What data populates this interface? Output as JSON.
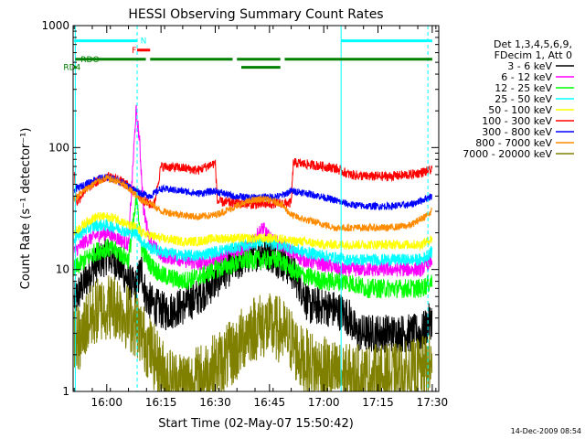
{
  "chart_data": {
    "type": "line",
    "title": "HESSI Observing Summary Count Rates",
    "xlabel": "Start Time (02-May-07 15:50:42)",
    "ylabel": "Count Rate (s⁻¹ detector⁻¹)",
    "x_unit": "hours (decimal, UT)",
    "xlim": [
      15.845,
      17.53
    ],
    "ylim": [
      1,
      1000
    ],
    "yscale": "log",
    "xticks": [
      {
        "x": 16.0,
        "label": "16:00"
      },
      {
        "x": 16.25,
        "label": "16:15"
      },
      {
        "x": 16.5,
        "label": "16:30"
      },
      {
        "x": 16.75,
        "label": "16:45"
      },
      {
        "x": 17.0,
        "label": "17:00"
      },
      {
        "x": 17.25,
        "label": "17:15"
      },
      {
        "x": 17.5,
        "label": "17:30"
      }
    ],
    "yticks": [
      {
        "y": 1,
        "label": "1"
      },
      {
        "y": 10,
        "label": "10"
      },
      {
        "y": 100,
        "label": "100"
      },
      {
        "y": 1000,
        "label": "1000"
      }
    ],
    "legend": {
      "header": [
        "Det 1,3,4,5,6,9,",
        "FDecim 1, Att 0"
      ],
      "placement": "right"
    },
    "series": [
      {
        "name": "3 - 6 keV",
        "color": "#000000",
        "points": [
          [
            15.85,
            5.5
          ],
          [
            15.9,
            8
          ],
          [
            15.95,
            11
          ],
          [
            16.0,
            13
          ],
          [
            16.05,
            11.5
          ],
          [
            16.1,
            8
          ],
          [
            16.13,
            7
          ],
          [
            16.16,
            10
          ],
          [
            16.18,
            6
          ],
          [
            16.22,
            5
          ],
          [
            16.27,
            4.5
          ],
          [
            16.35,
            5
          ],
          [
            16.42,
            6
          ],
          [
            16.5,
            8
          ],
          [
            16.55,
            10
          ],
          [
            16.62,
            12
          ],
          [
            16.68,
            14
          ],
          [
            16.74,
            14
          ],
          [
            16.8,
            12
          ],
          [
            16.85,
            10
          ],
          [
            16.9,
            7
          ],
          [
            16.93,
            5
          ],
          [
            17.0,
            5
          ],
          [
            17.08,
            4.5
          ],
          [
            17.12,
            4
          ],
          [
            17.15,
            3
          ],
          [
            17.25,
            3
          ],
          [
            17.35,
            3
          ],
          [
            17.45,
            3
          ],
          [
            17.5,
            4
          ]
        ]
      },
      {
        "name": "6 - 12 keV",
        "color": "#ff00ff",
        "points": [
          [
            15.85,
            14
          ],
          [
            15.9,
            17
          ],
          [
            15.95,
            19
          ],
          [
            16.0,
            20
          ],
          [
            16.05,
            18
          ],
          [
            16.1,
            16
          ],
          [
            16.135,
            200
          ],
          [
            16.15,
            120
          ],
          [
            16.17,
            30
          ],
          [
            16.2,
            17
          ],
          [
            16.25,
            13
          ],
          [
            16.35,
            12
          ],
          [
            16.42,
            11
          ],
          [
            16.5,
            12
          ],
          [
            16.58,
            14
          ],
          [
            16.65,
            15
          ],
          [
            16.72,
            22
          ],
          [
            16.75,
            18
          ],
          [
            16.8,
            16
          ],
          [
            16.85,
            14
          ],
          [
            16.9,
            12
          ],
          [
            17.0,
            11
          ],
          [
            17.08,
            10
          ],
          [
            17.15,
            10
          ],
          [
            17.25,
            10
          ],
          [
            17.35,
            10
          ],
          [
            17.45,
            10
          ],
          [
            17.5,
            12
          ]
        ]
      },
      {
        "name": "12 - 25 keV",
        "color": "#00ff00",
        "points": [
          [
            15.85,
            10
          ],
          [
            15.9,
            12
          ],
          [
            15.95,
            14
          ],
          [
            16.0,
            15
          ],
          [
            16.05,
            14
          ],
          [
            16.1,
            12
          ],
          [
            16.14,
            40
          ],
          [
            16.16,
            15
          ],
          [
            16.2,
            11
          ],
          [
            16.25,
            9
          ],
          [
            16.35,
            8
          ],
          [
            16.45,
            9
          ],
          [
            16.5,
            10
          ],
          [
            16.58,
            11
          ],
          [
            16.65,
            12
          ],
          [
            16.72,
            12
          ],
          [
            16.8,
            12
          ],
          [
            16.85,
            10
          ],
          [
            16.9,
            9
          ],
          [
            17.0,
            8
          ],
          [
            17.1,
            8
          ],
          [
            17.2,
            7
          ],
          [
            17.3,
            7
          ],
          [
            17.45,
            7
          ],
          [
            17.5,
            8
          ]
        ]
      },
      {
        "name": "25 - 50 keV",
        "color": "#00ffff",
        "points": [
          [
            15.85,
            18
          ],
          [
            15.9,
            21
          ],
          [
            15.95,
            23
          ],
          [
            16.0,
            23
          ],
          [
            16.05,
            22
          ],
          [
            16.1,
            20
          ],
          [
            16.14,
            20
          ],
          [
            16.16,
            17
          ],
          [
            16.2,
            15
          ],
          [
            16.25,
            14
          ],
          [
            16.35,
            13
          ],
          [
            16.42,
            13
          ],
          [
            16.5,
            14
          ],
          [
            16.58,
            15
          ],
          [
            16.65,
            16
          ],
          [
            16.72,
            17
          ],
          [
            16.8,
            16
          ],
          [
            16.85,
            15
          ],
          [
            16.9,
            14
          ],
          [
            17.0,
            13
          ],
          [
            17.1,
            12
          ],
          [
            17.2,
            12
          ],
          [
            17.3,
            12
          ],
          [
            17.45,
            12
          ],
          [
            17.5,
            14
          ]
        ]
      },
      {
        "name": "50 - 100 keV",
        "color": "#ffff00",
        "points": [
          [
            15.85,
            20
          ],
          [
            15.9,
            24
          ],
          [
            15.95,
            27
          ],
          [
            16.0,
            27
          ],
          [
            16.05,
            26
          ],
          [
            16.1,
            23
          ],
          [
            16.14,
            22
          ],
          [
            16.16,
            20
          ],
          [
            16.2,
            19
          ],
          [
            16.25,
            18
          ],
          [
            16.35,
            17
          ],
          [
            16.42,
            17
          ],
          [
            16.5,
            18
          ],
          [
            16.58,
            18
          ],
          [
            16.65,
            18
          ],
          [
            16.72,
            18
          ],
          [
            16.8,
            18
          ],
          [
            16.85,
            17
          ],
          [
            16.9,
            17
          ],
          [
            17.0,
            16
          ],
          [
            17.1,
            16
          ],
          [
            17.2,
            16
          ],
          [
            17.3,
            16
          ],
          [
            17.45,
            16
          ],
          [
            17.5,
            18
          ]
        ]
      },
      {
        "name": "100 - 300 keV",
        "color": "#ff0000",
        "points": [
          [
            15.85,
            65
          ],
          [
            15.86,
            35
          ],
          [
            15.9,
            45
          ],
          [
            15.95,
            52
          ],
          [
            16.0,
            58
          ],
          [
            16.05,
            55
          ],
          [
            16.1,
            48
          ],
          [
            16.14,
            42
          ],
          [
            16.16,
            38
          ],
          [
            16.2,
            34
          ],
          [
            16.22,
            35
          ],
          [
            16.25,
            70
          ],
          [
            16.35,
            68
          ],
          [
            16.42,
            65
          ],
          [
            16.5,
            75
          ],
          [
            16.51,
            36
          ],
          [
            16.6,
            35
          ],
          [
            16.7,
            34
          ],
          [
            16.8,
            35
          ],
          [
            16.85,
            35
          ],
          [
            16.86,
            75
          ],
          [
            16.95,
            72
          ],
          [
            17.05,
            68
          ],
          [
            17.12,
            60
          ],
          [
            17.2,
            58
          ],
          [
            17.3,
            58
          ],
          [
            17.4,
            60
          ],
          [
            17.5,
            65
          ]
        ]
      },
      {
        "name": "300 - 800 keV",
        "color": "#0000ff",
        "points": [
          [
            15.85,
            45
          ],
          [
            15.9,
            50
          ],
          [
            15.95,
            55
          ],
          [
            16.0,
            57
          ],
          [
            16.05,
            54
          ],
          [
            16.1,
            48
          ],
          [
            16.14,
            44
          ],
          [
            16.16,
            42
          ],
          [
            16.2,
            40
          ],
          [
            16.25,
            46
          ],
          [
            16.35,
            44
          ],
          [
            16.42,
            42
          ],
          [
            16.5,
            44
          ],
          [
            16.58,
            40
          ],
          [
            16.65,
            39
          ],
          [
            16.72,
            39
          ],
          [
            16.8,
            40
          ],
          [
            16.85,
            44
          ],
          [
            16.9,
            43
          ],
          [
            16.98,
            40
          ],
          [
            17.05,
            37
          ],
          [
            17.12,
            34
          ],
          [
            17.2,
            33
          ],
          [
            17.3,
            33
          ],
          [
            17.4,
            34
          ],
          [
            17.5,
            40
          ]
        ]
      },
      {
        "name": "800 - 7000 keV",
        "color": "#ff8c00",
        "points": [
          [
            15.85,
            38
          ],
          [
            15.9,
            45
          ],
          [
            15.95,
            52
          ],
          [
            16.0,
            56
          ],
          [
            16.05,
            53
          ],
          [
            16.1,
            46
          ],
          [
            16.14,
            40
          ],
          [
            16.16,
            37
          ],
          [
            16.2,
            35
          ],
          [
            16.25,
            30
          ],
          [
            16.35,
            28
          ],
          [
            16.42,
            27
          ],
          [
            16.5,
            28
          ],
          [
            16.58,
            32
          ],
          [
            16.65,
            36
          ],
          [
            16.72,
            38
          ],
          [
            16.8,
            35
          ],
          [
            16.85,
            28
          ],
          [
            16.9,
            26
          ],
          [
            16.98,
            24
          ],
          [
            17.05,
            22
          ],
          [
            17.12,
            22
          ],
          [
            17.2,
            22
          ],
          [
            17.3,
            22
          ],
          [
            17.4,
            23
          ],
          [
            17.5,
            30
          ]
        ]
      },
      {
        "name": "7000 - 20000 keV",
        "color": "#808000",
        "points": [
          [
            15.85,
            3
          ],
          [
            15.88,
            2.5
          ],
          [
            15.9,
            3.5
          ],
          [
            15.95,
            4.5
          ],
          [
            16.0,
            5
          ],
          [
            16.05,
            5
          ],
          [
            16.1,
            4
          ],
          [
            16.14,
            3.5
          ],
          [
            16.16,
            3
          ],
          [
            16.2,
            2.2
          ],
          [
            16.25,
            1.5
          ],
          [
            16.3,
            1.2
          ],
          [
            16.4,
            1.2
          ],
          [
            16.5,
            1.6
          ],
          [
            16.6,
            2.2
          ],
          [
            16.65,
            3.2
          ],
          [
            16.72,
            3.5
          ],
          [
            16.8,
            3.2
          ],
          [
            16.85,
            2.6
          ],
          [
            16.9,
            1.8
          ],
          [
            17.0,
            1.5
          ],
          [
            17.1,
            1.3
          ],
          [
            17.2,
            1.3
          ],
          [
            17.3,
            1.3
          ],
          [
            17.4,
            1.4
          ],
          [
            17.5,
            1.6
          ]
        ]
      }
    ],
    "status_bars": [
      {
        "label": "",
        "color": "#00ffff",
        "y": 750,
        "segments": [
          [
            15.85,
            16.14
          ],
          [
            17.08,
            17.5
          ]
        ]
      },
      {
        "label": "N",
        "color": "#00ffff",
        "y": 750,
        "label_x": 16.155,
        "segments": []
      },
      {
        "label": "F",
        "color": "#ff0000",
        "y": 630,
        "label_x": 16.115,
        "segments": [
          [
            16.14,
            16.2
          ]
        ]
      },
      {
        "label": "RDO",
        "color": "#008000",
        "y": 530,
        "label_x": 15.88,
        "segments": [
          [
            15.855,
            16.18
          ],
          [
            16.2,
            16.58
          ],
          [
            16.6,
            16.8
          ],
          [
            16.82,
            17.5
          ]
        ]
      },
      {
        "label": "RD4",
        "color": "#008000",
        "y": 455,
        "label_x": 15.8,
        "segments": [
          [
            15.85,
            15.86
          ],
          [
            16.62,
            16.8
          ]
        ]
      }
    ],
    "vlines": [
      {
        "x": 15.855,
        "color": "#00ffff",
        "style": "solid"
      },
      {
        "x": 16.14,
        "color": "#00ffff",
        "style": "dashed"
      },
      {
        "x": 17.08,
        "color": "#00ffff",
        "style": "solid"
      },
      {
        "x": 17.48,
        "color": "#00ffff",
        "style": "dashed"
      }
    ],
    "footer": "14-Dec-2009 08:54"
  }
}
